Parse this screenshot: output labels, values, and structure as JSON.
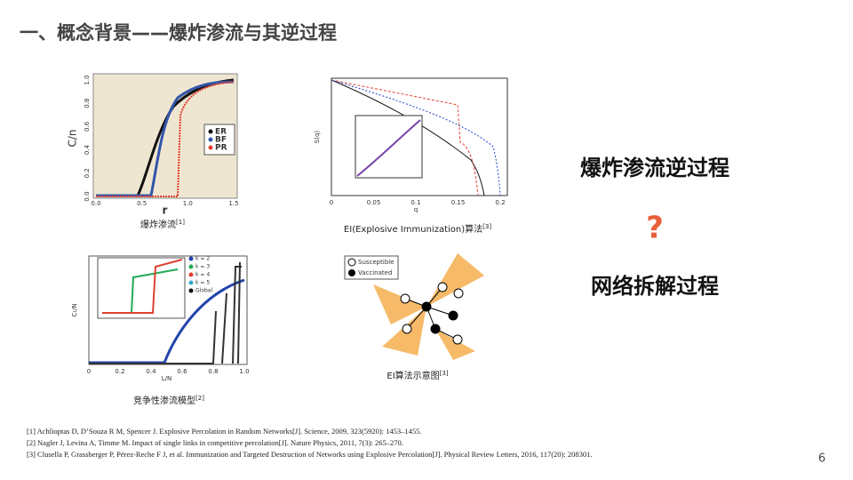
{
  "header": {
    "title": "一、概念背景——爆炸渗流与其逆过程"
  },
  "figures": [
    {
      "caption": "爆炸渗流",
      "ref": "[1]",
      "x_label": "r",
      "y_label": "C/n",
      "xticks": [
        "0.0",
        "0.5",
        "1.0",
        "1.5"
      ],
      "yticks": [
        "0.0",
        "0.2",
        "0.4",
        "0.6",
        "0.8",
        "1.0"
      ],
      "legend": [
        "ER",
        "BF",
        "PR"
      ]
    },
    {
      "caption": "EI(Explosive Immunization)算法",
      "ref": "[3]",
      "x_label": "q",
      "y_label": "S(q)",
      "xticks": [
        "0",
        "0.05",
        "0.1",
        "0.15",
        "0.2"
      ]
    },
    {
      "caption": "竞争性渗流模型",
      "ref": "[2]",
      "x_label": "L/N",
      "y_label": "C₁/N",
      "xticks": [
        "0",
        "0.2",
        "0.4",
        "0.6",
        "0.8",
        "1.0"
      ],
      "legend": [
        "k = 2",
        "k = 3",
        "k = 4",
        "k = 5",
        "Global"
      ]
    },
    {
      "caption": "EI算法示意图",
      "ref": "[3]",
      "legend": [
        "Susceptible",
        "Vaccinated"
      ]
    }
  ],
  "side": {
    "line1": "爆炸渗流逆过程",
    "mark": "?",
    "line2": "网络拆解过程"
  },
  "references": [
    "[1] Achlioptas D, D’Souza R M, Spencer J. Explosive Percolation in Random Networks[J]. Science, 2009, 323(5920): 1453–1455.",
    "[2] Nagler J, Levina A, Timme M. Impact of single links in competitive percolation[J]. Nature Physics, 2011, 7(3): 265–270.",
    "[3] Clusella P, Grassberger P, Pérez-Reche F J, et al. Immunization and Targeted Destruction of Networks using Explosive Percolation[J]. Physical Review Letters, 2016, 117(20): 208301."
  ],
  "page_number": "6"
}
